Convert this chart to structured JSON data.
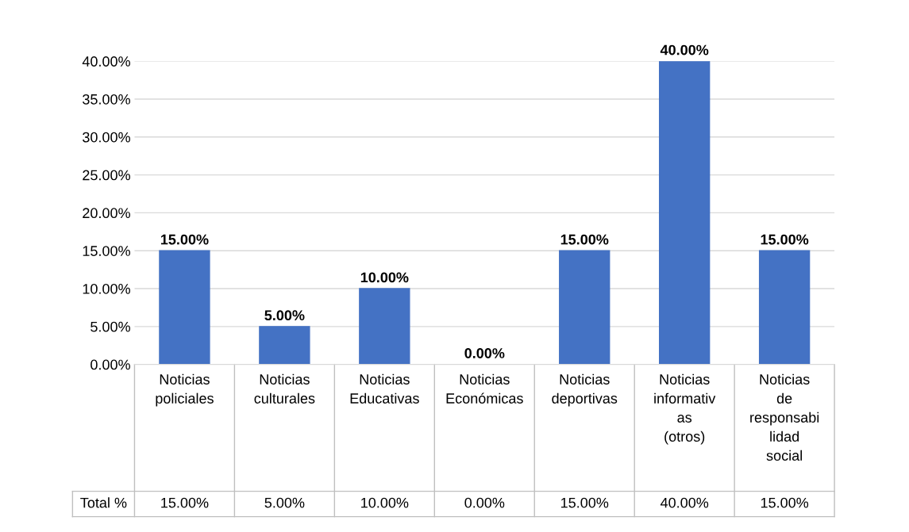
{
  "chart_data": {
    "type": "bar",
    "categories": [
      "Noticias policiales",
      "Noticias culturales",
      "Noticias Educativas",
      "Noticias Económicas",
      "Noticias deportivas",
      "Noticias informativas (otros)",
      "Noticias de responsabilidad social"
    ],
    "series": [
      {
        "name": "Total %",
        "color": "#4472c4",
        "values": [
          15,
          5,
          10,
          0,
          15,
          40,
          15
        ],
        "value_labels": [
          "15.00%",
          "5.00%",
          "10.00%",
          "0.00%",
          "15.00%",
          "40.00%",
          "15.00%"
        ]
      }
    ],
    "ylim": [
      0,
      40
    ],
    "yticks": [
      {
        "value": 0,
        "label": "0.00%"
      },
      {
        "value": 5,
        "label": "5.00%"
      },
      {
        "value": 10,
        "label": "10.00%"
      },
      {
        "value": 15,
        "label": "15.00%"
      },
      {
        "value": 20,
        "label": "20.00%"
      },
      {
        "value": 25,
        "label": "25.00%"
      },
      {
        "value": 30,
        "label": "30.00%"
      },
      {
        "value": 35,
        "label": "35.00%"
      },
      {
        "value": 40,
        "label": "40.00%"
      }
    ],
    "grid": "y",
    "legend": false
  }
}
